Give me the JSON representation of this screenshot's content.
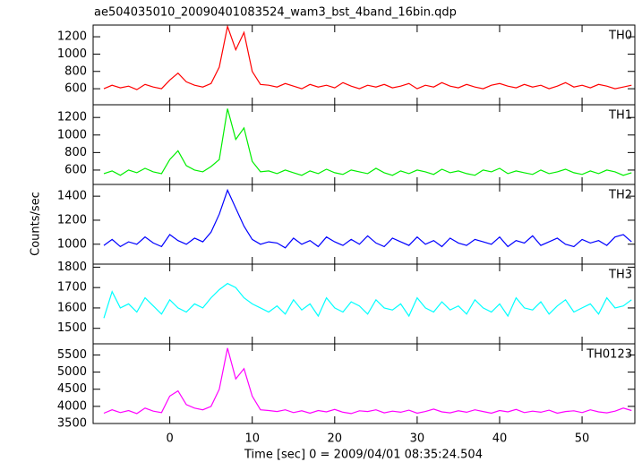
{
  "chart_data": {
    "type": "line",
    "title": "ae504035010_20090401083524_wam3_bst_4band_16bin.qdp",
    "x_label": "Time [sec] 0 = 2009/04/01 08:35:24.504",
    "y_label": "Counts/sec",
    "xlim": [
      -9.3,
      56.4
    ],
    "xticks": [
      0,
      10,
      20,
      30,
      40,
      50
    ],
    "x": [
      -8,
      -7,
      -6,
      -5,
      -4,
      -3,
      -2,
      -1,
      0,
      1,
      2,
      3,
      4,
      5,
      6,
      7,
      8,
      9,
      10,
      11,
      12,
      13,
      14,
      15,
      16,
      17,
      18,
      19,
      20,
      21,
      22,
      23,
      24,
      25,
      26,
      27,
      28,
      29,
      30,
      31,
      32,
      33,
      34,
      35,
      36,
      37,
      38,
      39,
      40,
      41,
      42,
      43,
      44,
      45,
      46,
      47,
      48,
      49,
      50,
      51,
      52,
      53,
      54,
      55,
      56
    ],
    "series": [
      {
        "name": "TH0",
        "color": "#ff0000",
        "ylim": [
          415,
          1335
        ],
        "yticks": [
          600,
          800,
          1000,
          1200
        ],
        "values": [
          600,
          640,
          610,
          630,
          590,
          650,
          620,
          600,
          700,
          780,
          680,
          640,
          620,
          660,
          850,
          1320,
          1050,
          1250,
          800,
          650,
          640,
          620,
          660,
          630,
          600,
          650,
          620,
          640,
          610,
          670,
          630,
          600,
          640,
          620,
          650,
          610,
          630,
          660,
          600,
          640,
          620,
          670,
          630,
          610,
          650,
          620,
          600,
          640,
          660,
          630,
          610,
          650,
          620,
          640,
          600,
          630,
          670,
          620,
          640,
          610,
          650,
          630,
          600,
          620,
          640
        ]
      },
      {
        "name": "TH1",
        "color": "#00ee00",
        "ylim": [
          436,
          1345
        ],
        "yticks": [
          600,
          800,
          1000,
          1200
        ],
        "values": [
          560,
          590,
          540,
          600,
          570,
          620,
          580,
          560,
          720,
          820,
          650,
          600,
          580,
          640,
          720,
          1300,
          950,
          1080,
          700,
          580,
          590,
          560,
          600,
          570,
          540,
          590,
          560,
          610,
          570,
          550,
          600,
          580,
          560,
          620,
          570,
          540,
          590,
          560,
          600,
          580,
          550,
          610,
          570,
          590,
          560,
          540,
          600,
          580,
          620,
          560,
          590,
          570,
          550,
          600,
          560,
          580,
          610,
          570,
          550,
          590,
          560,
          600,
          580,
          540,
          570
        ]
      },
      {
        "name": "TH2",
        "color": "#0000ff",
        "ylim": [
          834,
          1498
        ],
        "yticks": [
          1000,
          1200,
          1400
        ],
        "values": [
          990,
          1040,
          980,
          1020,
          1000,
          1060,
          1010,
          980,
          1080,
          1030,
          1000,
          1050,
          1020,
          1100,
          1250,
          1450,
          1300,
          1150,
          1040,
          1000,
          1020,
          1010,
          970,
          1050,
          1000,
          1030,
          980,
          1060,
          1020,
          990,
          1040,
          1000,
          1070,
          1010,
          980,
          1050,
          1020,
          990,
          1060,
          1000,
          1030,
          980,
          1050,
          1010,
          990,
          1040,
          1020,
          1000,
          1060,
          980,
          1030,
          1010,
          1070,
          990,
          1020,
          1050,
          1000,
          980,
          1040,
          1010,
          1030,
          990,
          1060,
          1080,
          1020
        ]
      },
      {
        "name": "TH3",
        "color": "#00ffff",
        "ylim": [
          1424,
          1815
        ],
        "yticks": [
          1500,
          1600,
          1700,
          1800
        ],
        "values": [
          1550,
          1680,
          1600,
          1620,
          1580,
          1650,
          1610,
          1570,
          1640,
          1600,
          1580,
          1620,
          1600,
          1650,
          1690,
          1720,
          1700,
          1650,
          1620,
          1600,
          1580,
          1610,
          1570,
          1640,
          1590,
          1620,
          1560,
          1650,
          1600,
          1580,
          1630,
          1610,
          1570,
          1640,
          1600,
          1590,
          1620,
          1560,
          1650,
          1600,
          1580,
          1630,
          1590,
          1610,
          1570,
          1640,
          1600,
          1580,
          1620,
          1560,
          1650,
          1600,
          1590,
          1630,
          1570,
          1610,
          1640,
          1580,
          1600,
          1620,
          1570,
          1650,
          1600,
          1610,
          1640
        ]
      },
      {
        "name": "TH0123",
        "color": "#ff00ff",
        "ylim": [
          3500,
          5825
        ],
        "yticks": [
          3500,
          4000,
          4500,
          5000,
          5500
        ],
        "values": [
          3800,
          3900,
          3820,
          3880,
          3790,
          3950,
          3860,
          3820,
          4300,
          4450,
          4050,
          3950,
          3900,
          4000,
          4500,
          5700,
          4800,
          5100,
          4300,
          3900,
          3880,
          3850,
          3900,
          3820,
          3870,
          3800,
          3880,
          3840,
          3910,
          3830,
          3790,
          3870,
          3850,
          3900,
          3810,
          3860,
          3830,
          3890,
          3800,
          3850,
          3920,
          3840,
          3810,
          3870,
          3830,
          3900,
          3850,
          3800,
          3880,
          3840,
          3910,
          3820,
          3860,
          3830,
          3890,
          3800,
          3850,
          3870,
          3820,
          3900,
          3840,
          3810,
          3860,
          3950,
          3880
        ]
      }
    ]
  }
}
